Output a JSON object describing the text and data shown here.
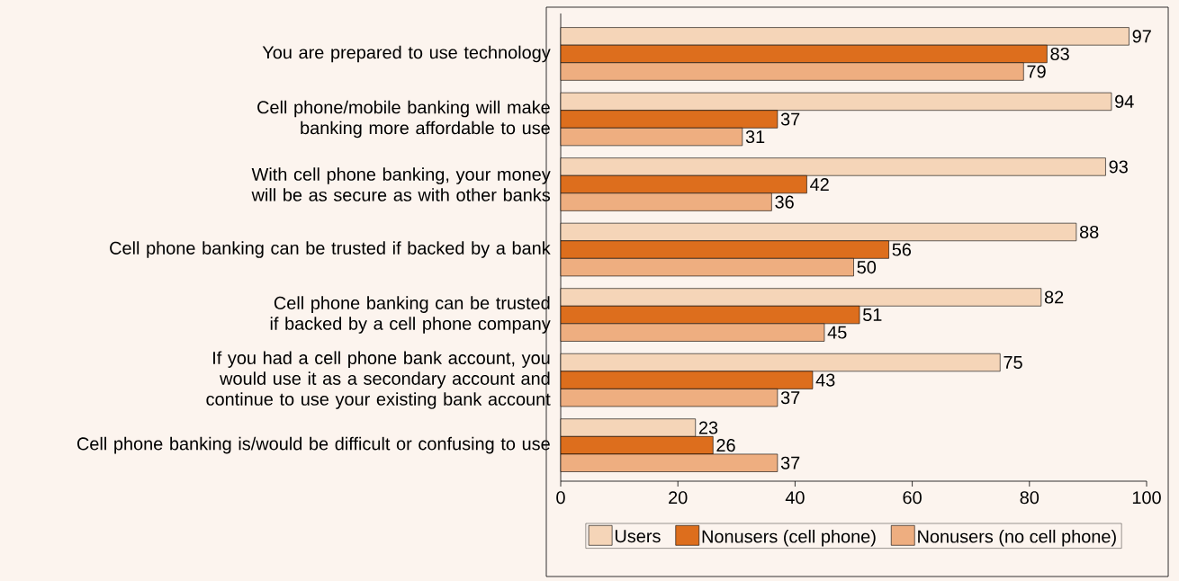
{
  "chart_data": {
    "type": "bar",
    "orientation": "horizontal",
    "categories": [
      "You are prepared to use technology",
      "Cell phone/mobile banking will make banking more affordable to use",
      "With cell phone banking, your money will be as secure as with other banks",
      "Cell phone banking can be trusted if backed by a bank",
      "Cell phone banking can be trusted if backed by a cell phone company",
      "If you had a cell phone bank account, you would use it as a secondary account and continue to use your existing bank account",
      "Cell phone banking is/would be difficult or confusing to use"
    ],
    "series": [
      {
        "name": "Users",
        "color": "#f5d5b8",
        "values": [
          97,
          94,
          93,
          88,
          82,
          75,
          23
        ]
      },
      {
        "name": "Nonusers (cell phone)",
        "color": "#dd6e1d",
        "values": [
          83,
          37,
          42,
          56,
          51,
          43,
          26
        ]
      },
      {
        "name": "Nonusers (no cell phone)",
        "color": "#eeae80",
        "values": [
          79,
          31,
          36,
          50,
          45,
          37,
          37
        ]
      }
    ],
    "xlim": [
      0,
      100
    ],
    "xticks": [
      0,
      20,
      40,
      60,
      80,
      100
    ],
    "data_labels": true,
    "legend": "bottom",
    "grid": false
  }
}
